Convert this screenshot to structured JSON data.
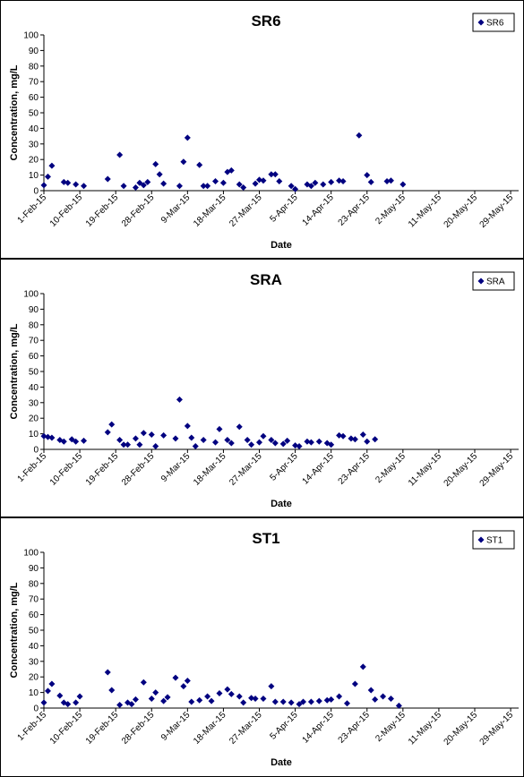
{
  "chart_data": [
    {
      "type": "scatter",
      "title": "SR6",
      "xlabel": "Date",
      "ylabel": "Concentration, mg/L",
      "ylim": [
        0,
        100
      ],
      "y_ticks": [
        "0",
        "10",
        "20",
        "30",
        "40",
        "50",
        "60",
        "70",
        "80",
        "90",
        "100"
      ],
      "x_ticks": [
        "1-Feb-15",
        "10-Feb-15",
        "19-Feb-15",
        "28-Feb-15",
        "9-Mar-15",
        "18-Mar-15",
        "27-Mar-15",
        "5-Apr-15",
        "14-Apr-15",
        "23-Apr-15",
        "2-May-15",
        "11-May-15",
        "20-May-15",
        "29-May-15"
      ],
      "xlim": [
        "2015-02-01",
        "2015-05-31"
      ],
      "grid": false,
      "legend_position": "top-right",
      "marker_color": "#000080",
      "series": [
        {
          "name": "SR6",
          "x": [
            "2015-02-01",
            "2015-02-02",
            "2015-02-03",
            "2015-02-05",
            "2015-02-06",
            "2015-02-07",
            "2015-02-09",
            "2015-02-11",
            "2015-02-12",
            "2015-02-17",
            "2015-02-18",
            "2015-02-20",
            "2015-02-21",
            "2015-02-22",
            "2015-02-24",
            "2015-02-25",
            "2015-02-26",
            "2015-02-27",
            "2015-02-28",
            "2015-03-01",
            "2015-03-02",
            "2015-03-03",
            "2015-03-05",
            "2015-03-06",
            "2015-03-07",
            "2015-03-08",
            "2015-03-09",
            "2015-03-11",
            "2015-03-12",
            "2015-03-13",
            "2015-03-14",
            "2015-03-16",
            "2015-03-17",
            "2015-03-18",
            "2015-03-19",
            "2015-03-20",
            "2015-03-22",
            "2015-03-23",
            "2015-03-24",
            "2015-03-26",
            "2015-03-27",
            "2015-03-28",
            "2015-03-30",
            "2015-03-31",
            "2015-04-01",
            "2015-04-03",
            "2015-04-04",
            "2015-04-05",
            "2015-04-06",
            "2015-04-08",
            "2015-04-09",
            "2015-04-10",
            "2015-04-12",
            "2015-04-13",
            "2015-04-14",
            "2015-04-16",
            "2015-04-17",
            "2015-04-19",
            "2015-04-20",
            "2015-04-21",
            "2015-04-23",
            "2015-04-24",
            "2015-04-25",
            "2015-04-27",
            "2015-04-28",
            "2015-04-29",
            "2015-05-01",
            "2015-05-02",
            "2015-05-03",
            "2015-05-05",
            "2015-05-06",
            "2015-05-07",
            "2015-05-09",
            "2015-05-10",
            "2015-05-11",
            "2015-05-13",
            "2015-05-14",
            "2015-05-15",
            "2015-05-17",
            "2015-05-18",
            "2015-05-19",
            "2015-05-21",
            "2015-05-22",
            "2015-05-23",
            "2015-05-25",
            "2015-05-26",
            "2015-05-27",
            "2015-05-29",
            "2015-05-30",
            "2015-05-31"
          ],
          "y": [
            3.5,
            9,
            16,
            null,
            5.5,
            5,
            4,
            3,
            null,
            7.5,
            null,
            23,
            3,
            null,
            2,
            5,
            3.5,
            5.5,
            null,
            17,
            10.5,
            4.5,
            null,
            null,
            3,
            18.5,
            34,
            null,
            16.5,
            3,
            3,
            6,
            null,
            5,
            12,
            13,
            4,
            2,
            null,
            4.5,
            7,
            6.5,
            10.5,
            10.5,
            6,
            null,
            3,
            1,
            null,
            4,
            3,
            5,
            4,
            null,
            5.5,
            6.5,
            6,
            null,
            null,
            35.5,
            10,
            5.5,
            null,
            null,
            6,
            6.5,
            null,
            4,
            null,
            null,
            null,
            null,
            null,
            null,
            null,
            null,
            null,
            null,
            null,
            null,
            null,
            null,
            null,
            null,
            null,
            null,
            null,
            null,
            null,
            null
          ]
        }
      ]
    },
    {
      "type": "scatter",
      "title": "SRA",
      "xlabel": "Date",
      "ylabel": "Concentration, mg/L",
      "ylim": [
        0,
        100
      ],
      "y_ticks": [
        "0",
        "10",
        "20",
        "30",
        "40",
        "50",
        "60",
        "70",
        "80",
        "90",
        "100"
      ],
      "x_ticks": [
        "1-Feb-15",
        "10-Feb-15",
        "19-Feb-15",
        "28-Feb-15",
        "9-Mar-15",
        "18-Mar-15",
        "27-Mar-15",
        "5-Apr-15",
        "14-Apr-15",
        "23-Apr-15",
        "2-May-15",
        "11-May-15",
        "20-May-15",
        "29-May-15"
      ],
      "xlim": [
        "2015-02-01",
        "2015-05-31"
      ],
      "grid": false,
      "legend_position": "top-right",
      "marker_color": "#000080",
      "series": [
        {
          "name": "SRA",
          "x": [],
          "y": []
        }
      ]
    },
    {
      "type": "scatter",
      "title": "ST1",
      "xlabel": "Date",
      "ylabel": "Concentration, mg/L",
      "ylim": [
        0,
        100
      ],
      "y_ticks": [
        "0",
        "10",
        "20",
        "30",
        "40",
        "50",
        "60",
        "70",
        "80",
        "90",
        "100"
      ],
      "x_ticks": [
        "1-Feb-15",
        "10-Feb-15",
        "19-Feb-15",
        "28-Feb-15",
        "9-Mar-15",
        "18-Mar-15",
        "27-Mar-15",
        "5-Apr-15",
        "14-Apr-15",
        "23-Apr-15",
        "2-May-15",
        "11-May-15",
        "20-May-15",
        "29-May-15"
      ],
      "xlim": [
        "2015-02-01",
        "2015-05-31"
      ],
      "grid": false,
      "legend_position": "top-right",
      "marker_color": "#000080",
      "series": [
        {
          "name": "ST1",
          "x": [],
          "y": []
        }
      ]
    }
  ]
}
